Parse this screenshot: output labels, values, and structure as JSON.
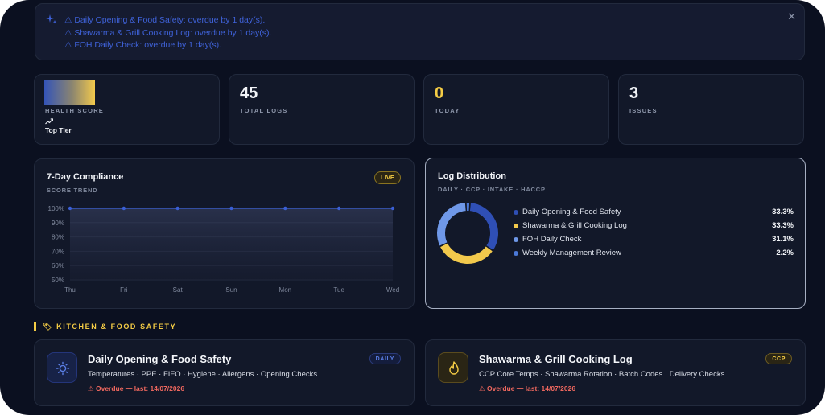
{
  "alert": {
    "lines": [
      "⚠ Daily Opening & Food Safety: overdue by 1 day(s).",
      "⚠ Shawarma & Grill Cooking Log: overdue by 1 day(s).",
      "⚠ FOH Daily Check: overdue by 1 day(s)."
    ],
    "close": "✕"
  },
  "stats": {
    "health": {
      "label": "HEALTH SCORE",
      "tier": "Top Tier"
    },
    "total_logs": {
      "value": "45",
      "label": "TOTAL LOGS"
    },
    "today": {
      "value": "0",
      "label": "TODAY"
    },
    "issues": {
      "value": "3",
      "label": "ISSUES"
    }
  },
  "compliance": {
    "title": "7-Day Compliance",
    "subtitle": "SCORE TREND",
    "badge": "LIVE"
  },
  "chart_data": [
    {
      "type": "area",
      "x": [
        "Thu",
        "Fri",
        "Sat",
        "Sun",
        "Mon",
        "Tue",
        "Wed"
      ],
      "values": [
        100,
        100,
        100,
        100,
        100,
        100,
        100
      ],
      "yticks": [
        "100%",
        "90%",
        "80%",
        "70%",
        "60%",
        "50%"
      ],
      "ylim": [
        50,
        100
      ],
      "grid": true,
      "color": "#3a5fd6"
    },
    {
      "type": "pie",
      "categories": [
        "Daily Opening & Food Safety",
        "Shawarma & Grill Cooking Log",
        "FOH Daily Check",
        "Weekly Management Review"
      ],
      "values": [
        33.3,
        33.3,
        31.1,
        2.2
      ],
      "labels": [
        "33.3%",
        "33.3%",
        "31.1%",
        "2.2%"
      ],
      "colors": [
        "#2f4fb5",
        "#f2c94c",
        "#6f98e8",
        "#4b79d8"
      ]
    }
  ],
  "distribution": {
    "title": "Log Distribution",
    "subtitle": "DAILY · CCP · INTAKE · HACCP"
  },
  "section": {
    "label": "🏷 KITCHEN & FOOD SAFETY"
  },
  "modules": [
    {
      "title": "Daily Opening & Food Safety",
      "tags": "Temperatures · PPE · FIFO · Hygiene · Allergens · Opening Checks",
      "overdue": "⚠ Overdue — last: 14/07/2026",
      "badge": "DAILY"
    },
    {
      "title": "Shawarma & Grill Cooking Log",
      "tags": "CCP Core Temps · Shawarma Rotation · Batch Codes · Delivery Checks",
      "overdue": "⚠ Overdue — last: 14/07/2026",
      "badge": "CCP"
    }
  ]
}
